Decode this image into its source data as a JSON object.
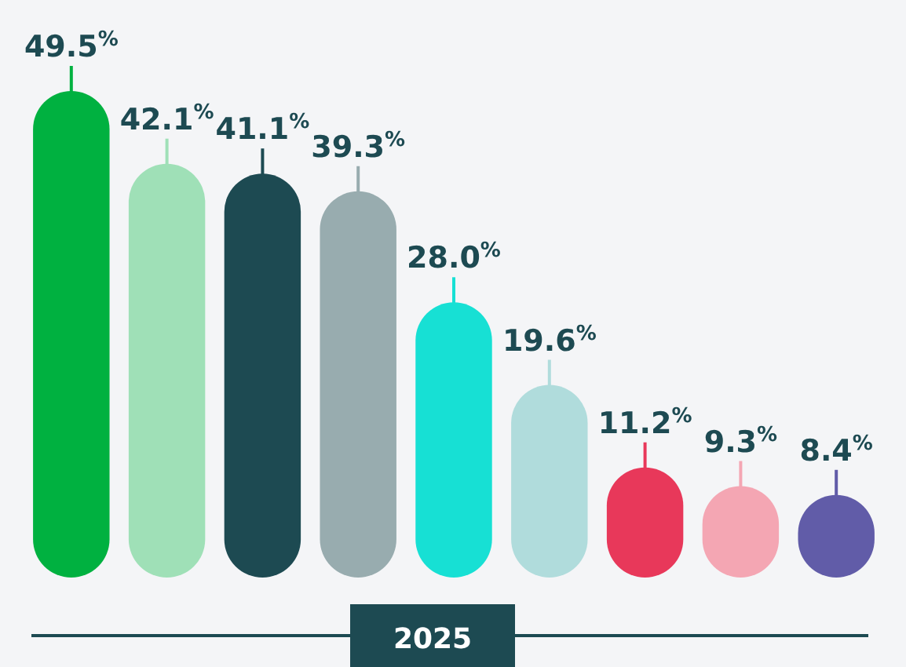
{
  "chart_data": {
    "type": "bar",
    "xlabel": "2025",
    "categories": [
      null,
      null,
      null,
      null,
      null,
      null,
      null,
      null,
      null
    ],
    "values": [
      49.5,
      42.1,
      41.1,
      39.3,
      28.0,
      19.6,
      11.2,
      9.3,
      8.4
    ],
    "colors": [
      "#00b140",
      "#9fe0b7",
      "#1d4a52",
      "#98acaf",
      "#17e0d4",
      "#b0dcdc",
      "#e8385a",
      "#f4a6b3",
      "#615ca8"
    ],
    "value_labels": [
      "49.5$^{%}$",
      "42.1$^{%}$",
      "41.1$^{%}$",
      "39.3$^{%}$",
      "28.0$^{%}$",
      "19.6$^{%}$",
      "11.2$^{%}$",
      "9.3$^{%}$",
      "8.4$^{%}$"
    ]
  }
}
